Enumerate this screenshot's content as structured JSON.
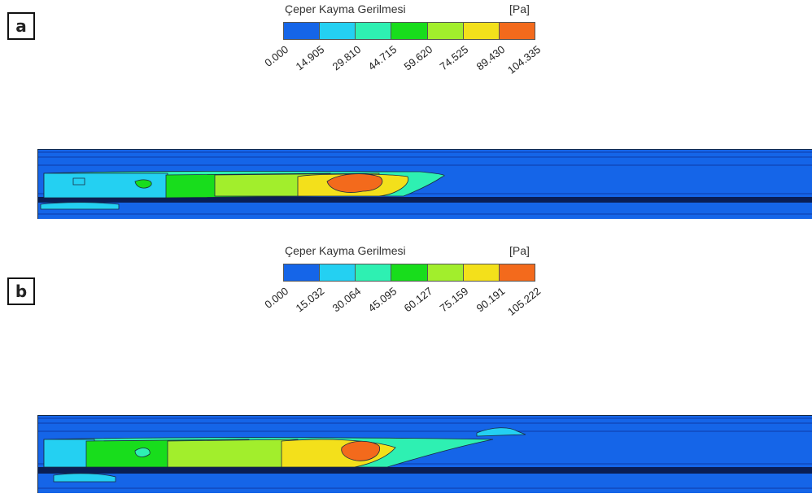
{
  "panels": [
    {
      "label": "a",
      "legend": {
        "title": "Çeper Kayma Gerilmesi",
        "unit": "[Pa]",
        "ticks": [
          "0.000",
          "14.905",
          "29.810",
          "44.715",
          "59.620",
          "74.525",
          "89.430",
          "104.335"
        ]
      }
    },
    {
      "label": "b",
      "legend": {
        "title": "Çeper Kayma Gerilmesi",
        "unit": "[Pa]",
        "ticks": [
          "0.000",
          "15.032",
          "30.064",
          "45.095",
          "60.127",
          "75.159",
          "90.191",
          "105.222"
        ]
      }
    }
  ],
  "colors": {
    "scale": [
      "#1565e8",
      "#24d0f2",
      "#2ef0b2",
      "#18dd1c",
      "#a2ee2c",
      "#f3e01b",
      "#f36a1c"
    ],
    "base": "#1565e8",
    "dark_band": "#0a1e54",
    "outline": "#1a2a40"
  }
}
